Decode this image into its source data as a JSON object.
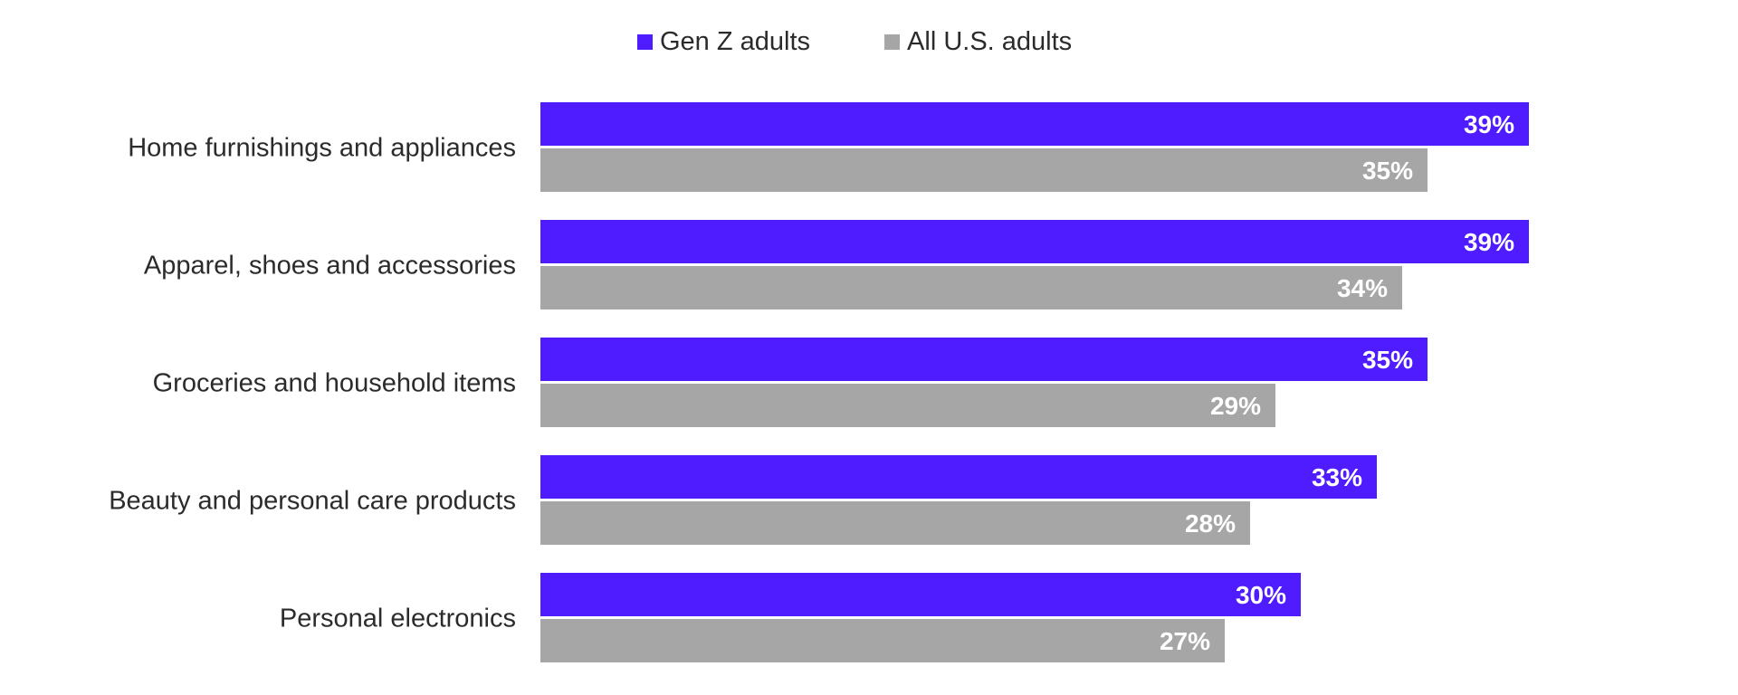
{
  "chart_data": {
    "type": "bar",
    "orientation": "horizontal",
    "categories": [
      "Home furnishings and appliances",
      "Apparel, shoes and accessories",
      "Groceries and household items",
      "Beauty and personal care products",
      "Personal electronics"
    ],
    "series": [
      {
        "name": "Gen Z adults",
        "color": "#4f1bff",
        "values": [
          39,
          39,
          35,
          33,
          30
        ],
        "labels": [
          "39%",
          "39%",
          "35%",
          "33%",
          "30%"
        ]
      },
      {
        "name": "All U.S. adults",
        "color": "#a6a6a6",
        "values": [
          35,
          34,
          29,
          28,
          27
        ],
        "labels": [
          "35%",
          "34%",
          "29%",
          "28%",
          "27%"
        ]
      }
    ],
    "xlim": [
      0,
      48
    ],
    "grid": false,
    "legend_position": "top-center",
    "title": "",
    "xlabel": "",
    "ylabel": ""
  }
}
